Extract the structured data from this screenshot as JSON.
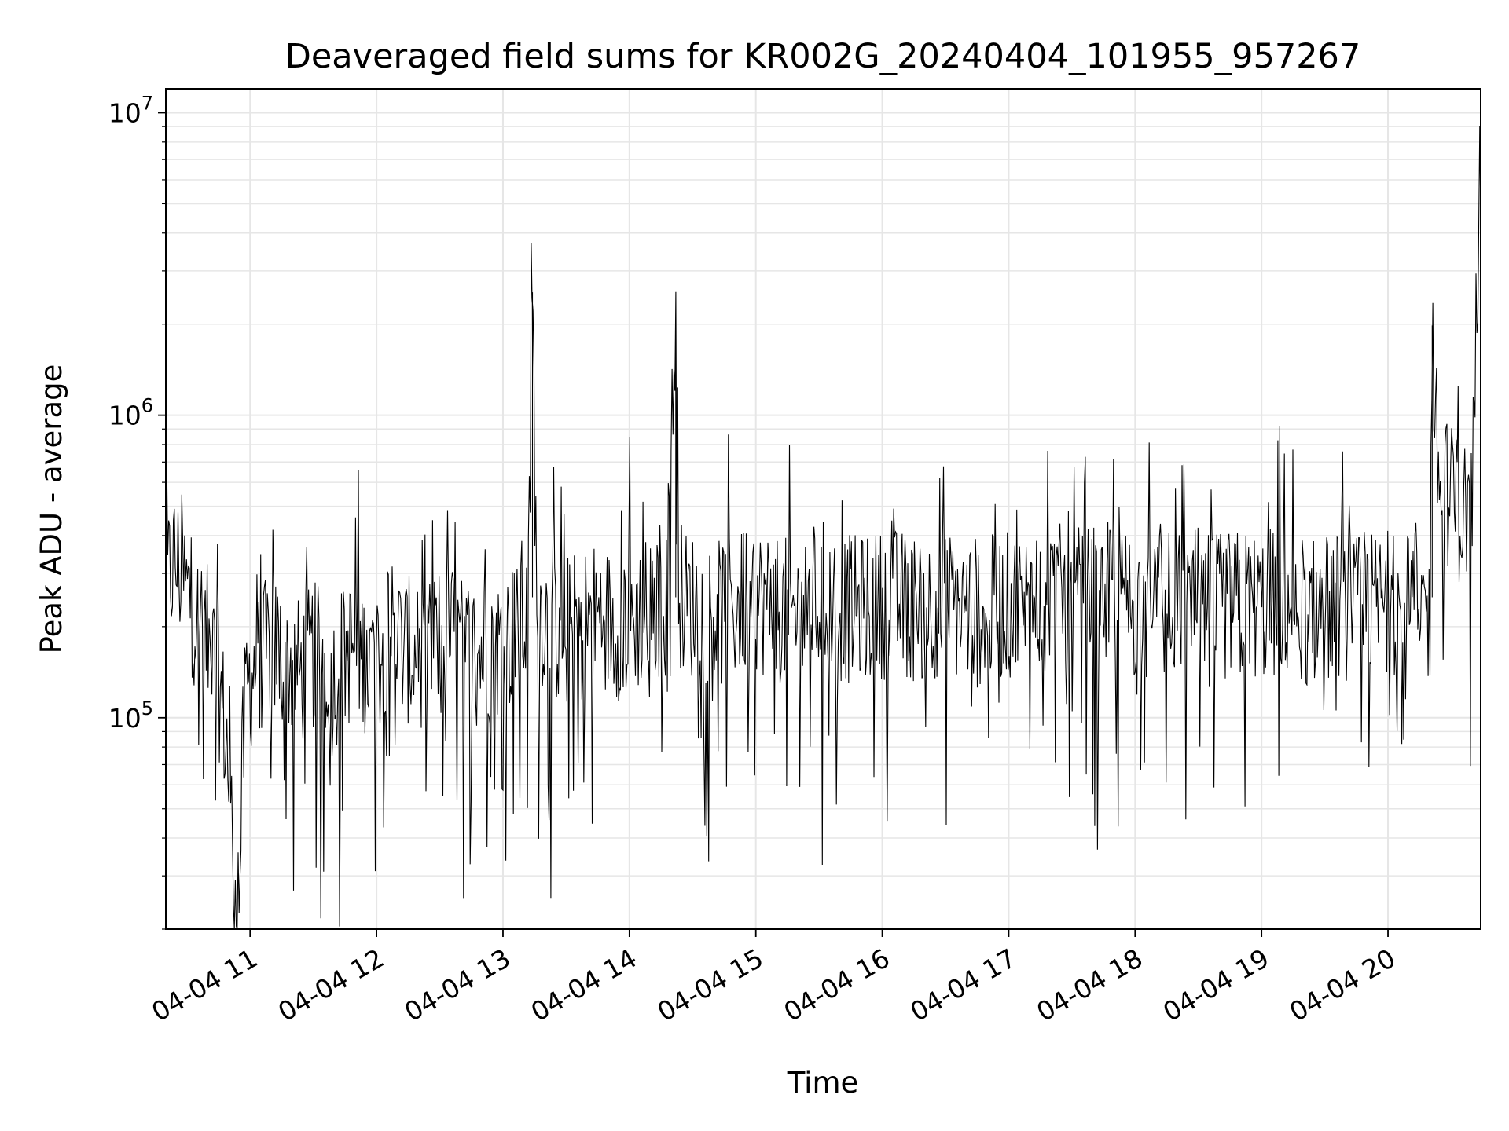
{
  "chart_data": {
    "type": "line",
    "title": "Deaveraged field sums for KR002G_20240404_101955_957267",
    "xlabel": "Time",
    "ylabel": "Peak ADU - average",
    "xlim": [
      "2024-04-04 10:20",
      "2024-04-04 20:44"
    ],
    "ylim": [
      20000,
      12000000
    ],
    "yscale": "log",
    "grid": true,
    "legend": "none",
    "line_color": "#000000",
    "grid_color": "#e6e6e6",
    "x_ticks": [
      {
        "time": "2024-04-04 11:00",
        "label": "04-04 11"
      },
      {
        "time": "2024-04-04 12:00",
        "label": "04-04 12"
      },
      {
        "time": "2024-04-04 13:00",
        "label": "04-04 13"
      },
      {
        "time": "2024-04-04 14:00",
        "label": "04-04 14"
      },
      {
        "time": "2024-04-04 15:00",
        "label": "04-04 15"
      },
      {
        "time": "2024-04-04 16:00",
        "label": "04-04 16"
      },
      {
        "time": "2024-04-04 17:00",
        "label": "04-04 17"
      },
      {
        "time": "2024-04-04 18:00",
        "label": "04-04 18"
      },
      {
        "time": "2024-04-04 19:00",
        "label": "04-04 19"
      },
      {
        "time": "2024-04-04 20:00",
        "label": "04-04 20"
      }
    ],
    "y_ticks": [
      {
        "value": 100000,
        "base": "10",
        "exp": "5"
      },
      {
        "value": 1000000,
        "base": "10",
        "exp": "6"
      },
      {
        "value": 10000000,
        "base": "10",
        "exp": "7"
      }
    ],
    "series": [
      {
        "x": [
          "2024-04-04 10:20",
          "2024-04-04 10:24",
          "2024-04-04 10:28",
          "2024-04-04 10:31",
          "2024-04-04 10:33",
          "2024-04-04 10:36",
          "2024-04-04 10:40",
          "2024-04-04 10:44",
          "2024-04-04 10:46",
          "2024-04-04 10:49",
          "2024-04-04 10:52",
          "2024-04-04 10:55",
          "2024-04-04 10:56",
          "2024-04-04 10:58",
          "2024-04-04 11:02",
          "2024-04-04 11:06",
          "2024-04-04 11:12",
          "2024-04-04 11:18",
          "2024-04-04 11:24",
          "2024-04-04 11:30",
          "2024-04-04 11:36",
          "2024-04-04 11:39",
          "2024-04-04 11:44",
          "2024-04-04 11:50",
          "2024-04-04 11:57",
          "2024-04-04 12:04",
          "2024-04-04 12:07",
          "2024-04-04 12:12",
          "2024-04-04 12:20",
          "2024-04-04 12:28",
          "2024-04-04 12:35",
          "2024-04-04 12:40",
          "2024-04-04 12:48",
          "2024-04-04 12:56",
          "2024-04-04 13:02",
          "2024-04-04 13:08",
          "2024-04-04 13:12",
          "2024-04-04 13:14",
          "2024-04-04 13:16",
          "2024-04-04 13:22",
          "2024-04-04 13:30",
          "2024-04-04 13:38",
          "2024-04-04 13:46",
          "2024-04-04 13:54",
          "2024-04-04 14:02",
          "2024-04-04 14:10",
          "2024-04-04 14:18",
          "2024-04-04 14:22",
          "2024-04-04 14:24",
          "2024-04-04 14:26",
          "2024-04-04 14:34",
          "2024-04-04 14:42",
          "2024-04-04 14:50",
          "2024-04-04 14:58",
          "2024-04-04 15:04",
          "2024-04-04 15:10",
          "2024-04-04 15:18",
          "2024-04-04 15:26",
          "2024-04-04 15:34",
          "2024-04-04 15:42",
          "2024-04-04 15:50",
          "2024-04-04 15:58",
          "2024-04-04 16:06",
          "2024-04-04 16:14",
          "2024-04-04 16:22",
          "2024-04-04 16:30",
          "2024-04-04 16:38",
          "2024-04-04 16:46",
          "2024-04-04 16:54",
          "2024-04-04 17:02",
          "2024-04-04 17:10",
          "2024-04-04 17:18",
          "2024-04-04 17:26",
          "2024-04-04 17:34",
          "2024-04-04 17:42",
          "2024-04-04 17:50",
          "2024-04-04 17:58",
          "2024-04-04 18:06",
          "2024-04-04 18:14",
          "2024-04-04 18:22",
          "2024-04-04 18:30",
          "2024-04-04 18:38",
          "2024-04-04 18:46",
          "2024-04-04 18:54",
          "2024-04-04 19:00",
          "2024-04-04 19:06",
          "2024-04-04 19:14",
          "2024-04-04 19:22",
          "2024-04-04 19:30",
          "2024-04-04 19:38",
          "2024-04-04 19:46",
          "2024-04-04 19:54",
          "2024-04-04 20:02",
          "2024-04-04 20:08",
          "2024-04-04 20:14",
          "2024-04-04 20:17",
          "2024-04-04 20:20",
          "2024-04-04 20:21",
          "2024-04-04 20:24",
          "2024-04-04 20:28",
          "2024-04-04 20:32",
          "2024-04-04 20:36",
          "2024-04-04 20:40",
          "2024-04-04 20:44"
        ],
        "y": [
          270000,
          330000,
          290000,
          250000,
          230000,
          200000,
          180000,
          140000,
          120000,
          80000,
          37000,
          26000,
          60000,
          120000,
          150000,
          160000,
          170000,
          150000,
          140000,
          160000,
          150000,
          130000,
          160000,
          170000,
          150000,
          180000,
          200000,
          170000,
          160000,
          180000,
          190000,
          170000,
          165000,
          170000,
          180000,
          200000,
          210000,
          2550000,
          240000,
          200000,
          190000,
          210000,
          220000,
          200000,
          210000,
          230000,
          240000,
          2420000,
          260000,
          240000,
          230000,
          220000,
          230000,
          250000,
          240000,
          230000,
          220000,
          230000,
          240000,
          230000,
          225000,
          235000,
          240000,
          230000,
          235000,
          240000,
          230000,
          225000,
          230000,
          235000,
          240000,
          245000,
          250000,
          240000,
          245000,
          250000,
          240000,
          230000,
          240000,
          235000,
          240000,
          230000,
          235000,
          240000,
          230000,
          235000,
          240000,
          225000,
          230000,
          235000,
          230000,
          235000,
          240000,
          230000,
          230000,
          220000,
          225000,
          1980000,
          600000,
          560000,
          500000,
          480000,
          500000,
          9100000
        ]
      }
    ]
  }
}
